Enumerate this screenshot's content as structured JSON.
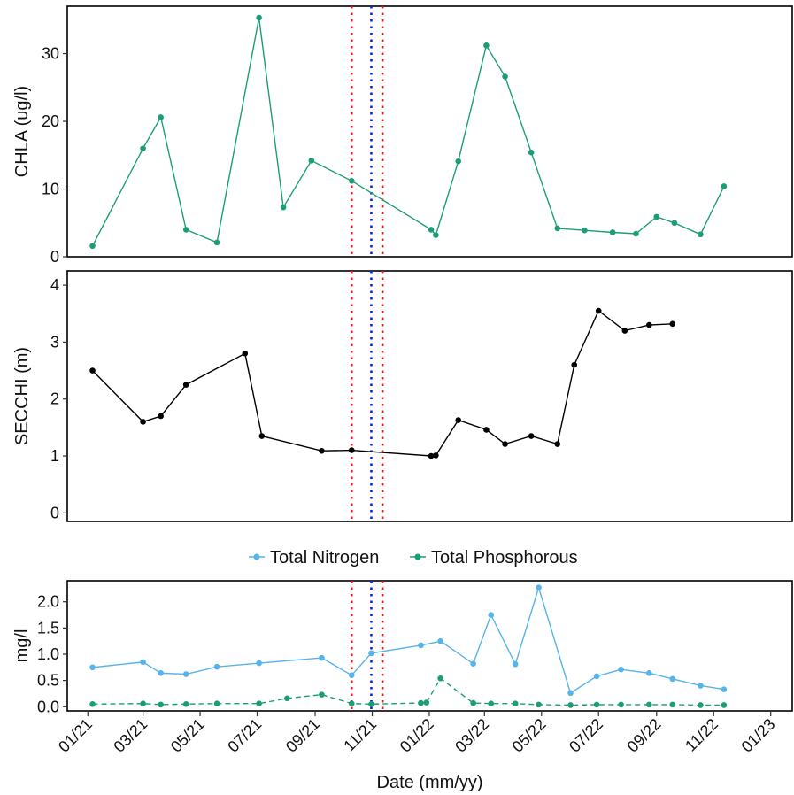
{
  "x_axis": {
    "title": "Date (mm/yy)",
    "ticks": [
      "01/21",
      "03/21",
      "05/21",
      "07/21",
      "09/21",
      "11/21",
      "01/22",
      "03/22",
      "05/22",
      "07/22",
      "09/22",
      "11/22",
      "01/23"
    ],
    "tick_dates": [
      "2021-01-01",
      "2021-03-01",
      "2021-05-01",
      "2021-07-01",
      "2021-09-01",
      "2021-11-01",
      "2022-01-01",
      "2022-03-01",
      "2022-05-01",
      "2022-07-01",
      "2022-09-01",
      "2022-11-01",
      "2023-01-01"
    ],
    "range": [
      "2020-12-10",
      "2023-01-24"
    ]
  },
  "reference_lines": [
    {
      "date": "2021-10-10",
      "color": "#e41a1c",
      "style": "dotted"
    },
    {
      "date": "2021-10-31",
      "color": "#1a1adb",
      "style": "dotted"
    },
    {
      "date": "2021-11-12",
      "color": "#e41a1c",
      "style": "dotted"
    }
  ],
  "chart_data": [
    {
      "type": "line",
      "ylabel": "CHLA (ug/l)",
      "ylim": [
        0,
        37
      ],
      "yticks": [
        "0",
        "10",
        "20",
        "30"
      ],
      "ytick_values": [
        0,
        10,
        20,
        30
      ],
      "series": [
        {
          "color": "#1b9e77",
          "points": [
            [
              "2021-01-06",
              1.6
            ],
            [
              "2021-03-01",
              16.0
            ],
            [
              "2021-03-20",
              20.6
            ],
            [
              "2021-04-16",
              4.0
            ],
            [
              "2021-05-19",
              2.1
            ],
            [
              "2021-07-03",
              35.3
            ],
            [
              "2021-07-29",
              7.3
            ],
            [
              "2021-08-28",
              14.2
            ],
            [
              "2021-10-10",
              11.2
            ],
            [
              "2022-01-03",
              4.0
            ],
            [
              "2022-01-08",
              3.2
            ],
            [
              "2022-02-01",
              14.1
            ],
            [
              "2022-03-03",
              31.2
            ],
            [
              "2022-03-23",
              26.6
            ],
            [
              "2022-04-20",
              15.4
            ],
            [
              "2022-05-18",
              4.2
            ],
            [
              "2022-06-16",
              3.9
            ],
            [
              "2022-07-16",
              3.6
            ],
            [
              "2022-08-10",
              3.4
            ],
            [
              "2022-09-01",
              5.9
            ],
            [
              "2022-09-20",
              5.0
            ],
            [
              "2022-10-18",
              3.3
            ],
            [
              "2022-11-12",
              10.4
            ]
          ]
        }
      ]
    },
    {
      "type": "line",
      "ylabel": "SECCHI (m)",
      "ylim": [
        -0.15,
        4.25
      ],
      "yticks": [
        "0",
        "1",
        "2",
        "3",
        "4"
      ],
      "ytick_values": [
        0,
        1,
        2,
        3,
        4
      ],
      "series": [
        {
          "color": "#000000",
          "points": [
            [
              "2021-01-06",
              2.5
            ],
            [
              "2021-03-01",
              1.6
            ],
            [
              "2021-03-20",
              1.7
            ],
            [
              "2021-04-16",
              2.25
            ],
            [
              "2021-06-18",
              2.8
            ],
            [
              "2021-07-06",
              1.35
            ],
            [
              "2021-09-08",
              1.09
            ],
            [
              "2021-10-10",
              1.1
            ],
            [
              "2022-01-03",
              1.0
            ],
            [
              "2022-01-08",
              1.01
            ],
            [
              "2022-02-01",
              1.63
            ],
            [
              "2022-03-03",
              1.46
            ],
            [
              "2022-03-23",
              1.21
            ],
            [
              "2022-04-20",
              1.35
            ],
            [
              "2022-05-18",
              1.21
            ],
            [
              "2022-06-05",
              2.6
            ],
            [
              "2022-07-01",
              3.55
            ],
            [
              "2022-07-29",
              3.2
            ],
            [
              "2022-08-24",
              3.3
            ],
            [
              "2022-09-18",
              3.32
            ]
          ]
        }
      ]
    },
    {
      "type": "line",
      "ylabel": "mg/l",
      "ylim": [
        -0.08,
        2.4
      ],
      "yticks": [
        "0.0",
        "0.5",
        "1.0",
        "1.5",
        "2.0"
      ],
      "ytick_values": [
        0,
        0.5,
        1.0,
        1.5,
        2.0
      ],
      "legend_position": "top",
      "series": [
        {
          "name": "Total Nitrogen",
          "color": "#56b4e9",
          "dash": "solid",
          "points": [
            [
              "2021-01-06",
              0.75
            ],
            [
              "2021-03-01",
              0.85
            ],
            [
              "2021-03-20",
              0.64
            ],
            [
              "2021-04-16",
              0.62
            ],
            [
              "2021-05-19",
              0.76
            ],
            [
              "2021-07-03",
              0.83
            ],
            [
              "2021-09-08",
              0.93
            ],
            [
              "2021-10-10",
              0.6
            ],
            [
              "2021-10-31",
              1.02
            ],
            [
              "2021-12-23",
              1.17
            ],
            [
              "2022-01-13",
              1.25
            ],
            [
              "2022-02-17",
              0.82
            ],
            [
              "2022-03-08",
              1.75
            ],
            [
              "2022-04-03",
              0.81
            ],
            [
              "2022-04-28",
              2.27
            ],
            [
              "2022-06-01",
              0.26
            ],
            [
              "2022-06-29",
              0.58
            ],
            [
              "2022-07-25",
              0.71
            ],
            [
              "2022-08-24",
              0.64
            ],
            [
              "2022-09-18",
              0.53
            ],
            [
              "2022-10-18",
              0.4
            ],
            [
              "2022-11-12",
              0.33
            ]
          ]
        },
        {
          "name": "Total Phosphorous",
          "color": "#1b9e77",
          "dash": "dashed",
          "points": [
            [
              "2021-01-06",
              0.05
            ],
            [
              "2021-03-01",
              0.06
            ],
            [
              "2021-03-20",
              0.04
            ],
            [
              "2021-04-16",
              0.05
            ],
            [
              "2021-05-19",
              0.06
            ],
            [
              "2021-07-03",
              0.06
            ],
            [
              "2021-08-02",
              0.16
            ],
            [
              "2021-09-08",
              0.23
            ],
            [
              "2021-10-10",
              0.06
            ],
            [
              "2021-10-31",
              0.05
            ],
            [
              "2021-12-23",
              0.07
            ],
            [
              "2021-12-29",
              0.08
            ],
            [
              "2022-01-13",
              0.54
            ],
            [
              "2022-02-17",
              0.07
            ],
            [
              "2022-03-08",
              0.06
            ],
            [
              "2022-04-03",
              0.06
            ],
            [
              "2022-04-28",
              0.04
            ],
            [
              "2022-06-01",
              0.03
            ],
            [
              "2022-06-29",
              0.04
            ],
            [
              "2022-07-25",
              0.04
            ],
            [
              "2022-08-24",
              0.04
            ],
            [
              "2022-09-18",
              0.04
            ],
            [
              "2022-10-18",
              0.03
            ],
            [
              "2022-11-12",
              0.03
            ]
          ]
        }
      ]
    }
  ]
}
